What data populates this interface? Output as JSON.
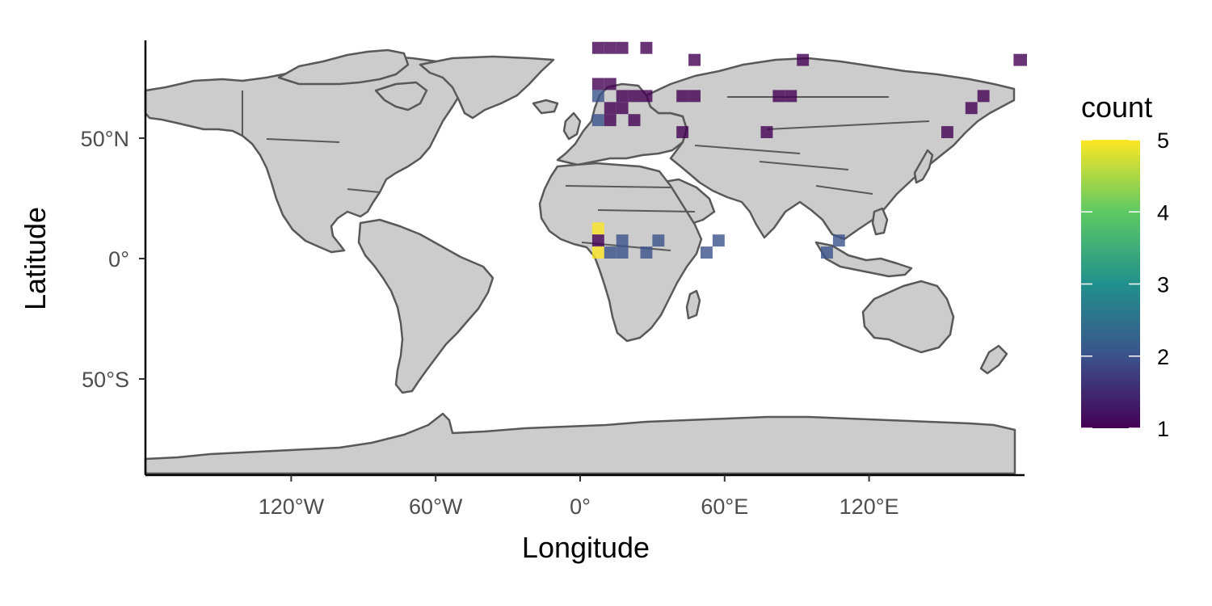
{
  "chart_data": {
    "type": "heatmap",
    "map": "world",
    "xlabel": "Longitude",
    "ylabel": "Latitude",
    "xlim": [
      -180,
      180
    ],
    "ylim": [
      -90,
      90
    ],
    "x_ticks": [
      {
        "value": -120,
        "label": "120°W"
      },
      {
        "value": -60,
        "label": "60°W"
      },
      {
        "value": 0,
        "label": "0°"
      },
      {
        "value": 60,
        "label": "60°E"
      },
      {
        "value": 120,
        "label": "120°E"
      }
    ],
    "y_ticks": [
      {
        "value": 50,
        "label": "50°N"
      },
      {
        "value": 0,
        "label": "0°"
      },
      {
        "value": -50,
        "label": "50°S"
      }
    ],
    "grid": false,
    "cell_size_deg": 5,
    "legend": {
      "title": "count",
      "placement": "right",
      "colormap": "viridis",
      "range": [
        1,
        5
      ],
      "ticks": [
        1,
        2,
        3,
        4,
        5
      ],
      "colors": [
        "#440154",
        "#3b528b",
        "#21908c",
        "#5dc963",
        "#fde725"
      ]
    },
    "cells": [
      {
        "lon": 7.5,
        "lat": 87.5,
        "count": 1
      },
      {
        "lon": 12.5,
        "lat": 87.5,
        "count": 1
      },
      {
        "lon": 17.5,
        "lat": 87.5,
        "count": 1
      },
      {
        "lon": 27.5,
        "lat": 87.5,
        "count": 1
      },
      {
        "lon": 47.5,
        "lat": 82.5,
        "count": 1
      },
      {
        "lon": 92.5,
        "lat": 82.5,
        "count": 1
      },
      {
        "lon": 182.5,
        "lat": 82.5,
        "count": 1
      },
      {
        "lon": 7.5,
        "lat": 72.5,
        "count": 1
      },
      {
        "lon": 12.5,
        "lat": 72.5,
        "count": 1
      },
      {
        "lon": 7.5,
        "lat": 67.5,
        "count": 2
      },
      {
        "lon": 17.5,
        "lat": 67.5,
        "count": 1
      },
      {
        "lon": 22.5,
        "lat": 67.5,
        "count": 1
      },
      {
        "lon": 27.5,
        "lat": 67.5,
        "count": 1
      },
      {
        "lon": 42.5,
        "lat": 67.5,
        "count": 1
      },
      {
        "lon": 47.5,
        "lat": 67.5,
        "count": 1
      },
      {
        "lon": 82.5,
        "lat": 67.5,
        "count": 1
      },
      {
        "lon": 87.5,
        "lat": 67.5,
        "count": 1
      },
      {
        "lon": 167.5,
        "lat": 67.5,
        "count": 1
      },
      {
        "lon": 12.5,
        "lat": 62.5,
        "count": 1
      },
      {
        "lon": 17.5,
        "lat": 62.5,
        "count": 1
      },
      {
        "lon": 162.5,
        "lat": 62.5,
        "count": 1
      },
      {
        "lon": 7.5,
        "lat": 57.5,
        "count": 2
      },
      {
        "lon": 12.5,
        "lat": 57.5,
        "count": 1
      },
      {
        "lon": 22.5,
        "lat": 57.5,
        "count": 1
      },
      {
        "lon": 42.5,
        "lat": 52.5,
        "count": 1
      },
      {
        "lon": 77.5,
        "lat": 52.5,
        "count": 1
      },
      {
        "lon": 152.5,
        "lat": 52.5,
        "count": 1
      },
      {
        "lon": 7.5,
        "lat": 12.5,
        "count": 5
      },
      {
        "lon": 7.5,
        "lat": 7.5,
        "count": 1
      },
      {
        "lon": 17.5,
        "lat": 7.5,
        "count": 2
      },
      {
        "lon": 32.5,
        "lat": 7.5,
        "count": 2
      },
      {
        "lon": 57.5,
        "lat": 7.5,
        "count": 2
      },
      {
        "lon": 107.5,
        "lat": 7.5,
        "count": 2
      },
      {
        "lon": 7.5,
        "lat": 2.5,
        "count": 5
      },
      {
        "lon": 12.5,
        "lat": 2.5,
        "count": 2
      },
      {
        "lon": 17.5,
        "lat": 2.5,
        "count": 2
      },
      {
        "lon": 27.5,
        "lat": 2.5,
        "count": 2
      },
      {
        "lon": 52.5,
        "lat": 2.5,
        "count": 2
      },
      {
        "lon": 102.5,
        "lat": 2.5,
        "count": 2
      }
    ]
  }
}
